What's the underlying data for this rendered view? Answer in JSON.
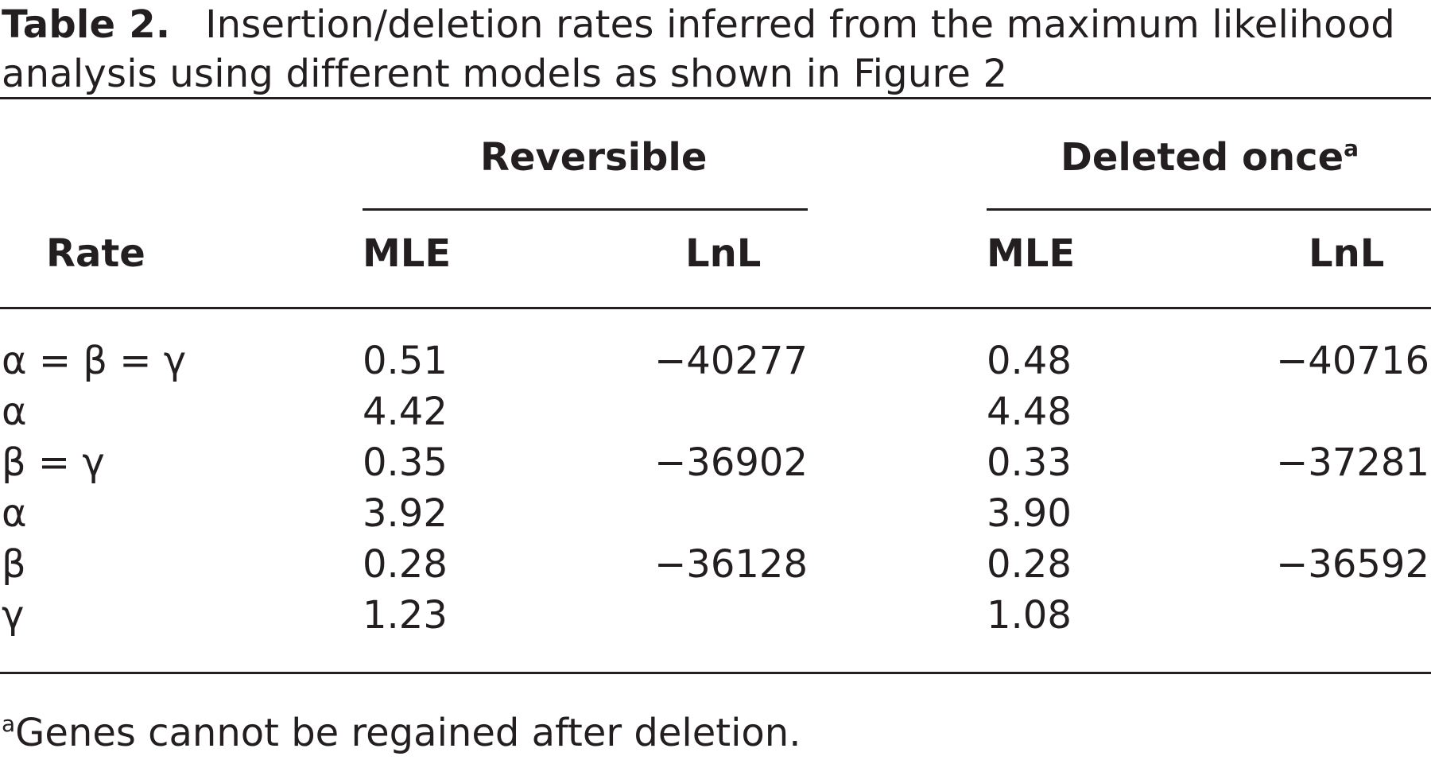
{
  "caption": {
    "label": "Table 2.",
    "text": "Insertion/deletion rates inferred from the maximum likelihood analysis using different models as shown in Figure 2"
  },
  "table": {
    "groups": [
      {
        "label": "Reversible",
        "footnote_mark": ""
      },
      {
        "label": "Deleted once",
        "footnote_mark": "a"
      }
    ],
    "columns": {
      "rate": "Rate",
      "mle": "MLE",
      "lnl": "LnL"
    },
    "rows": [
      {
        "rate": "α = β = γ",
        "rev_mle": "0.51",
        "rev_lnl": "−40277",
        "del_mle": "0.48",
        "del_lnl": "−40716"
      },
      {
        "rate": "α",
        "rev_mle": "4.42",
        "rev_lnl": "",
        "del_mle": "4.48",
        "del_lnl": ""
      },
      {
        "rate": "β = γ",
        "rev_mle": "0.35",
        "rev_lnl": "−36902",
        "del_mle": "0.33",
        "del_lnl": "−37281"
      },
      {
        "rate": "α",
        "rev_mle": "3.92",
        "rev_lnl": "",
        "del_mle": "3.90",
        "del_lnl": ""
      },
      {
        "rate": "β",
        "rev_mle": "0.28",
        "rev_lnl": "−36128",
        "del_mle": "0.28",
        "del_lnl": "−36592"
      },
      {
        "rate": "γ",
        "rev_mle": "1.23",
        "rev_lnl": "",
        "del_mle": "1.08",
        "del_lnl": ""
      }
    ]
  },
  "footnote": {
    "mark": "a",
    "text": "Genes cannot be regained after deletion."
  }
}
